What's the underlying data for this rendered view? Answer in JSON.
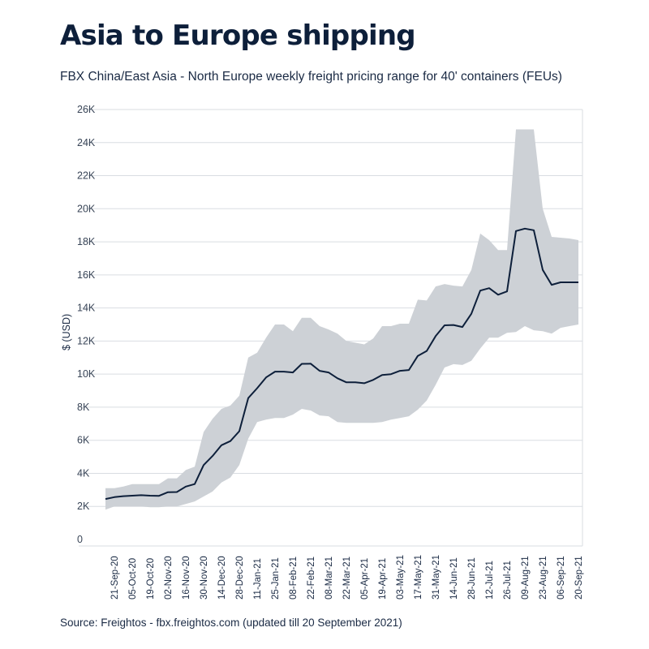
{
  "header": {
    "title": "Asia to Europe shipping",
    "subtitle": "FBX China/East Asia - North Europe weekly freight pricing range for 40' containers (FEUs)"
  },
  "footer": {
    "source": "Source: Freightos - fbx.freightos.com (updated till 20 September 2021)"
  },
  "colors": {
    "line": "#0d1f3a",
    "band": "#cdd1d6",
    "grid": "#d9dde2"
  },
  "chart_data": {
    "type": "area",
    "title": "Asia to Europe shipping",
    "subtitle": "FBX China/East Asia - North Europe weekly freight pricing range for 40' containers (FEUs)",
    "ylabel": "$ (USD)",
    "xlabel": "",
    "ylim": [
      0,
      26000
    ],
    "yticks": [
      0,
      2000,
      4000,
      6000,
      8000,
      10000,
      12000,
      14000,
      16000,
      18000,
      20000,
      22000,
      24000,
      26000
    ],
    "ytick_labels": [
      "0",
      "2K",
      "4K",
      "6K",
      "8K",
      "10K",
      "12K",
      "14K",
      "16K",
      "18K",
      "20K",
      "22K",
      "24K",
      "26K"
    ],
    "grid": true,
    "legend": "none",
    "x_tick_labels": [
      "21-Sep-20",
      "05-Oct-20",
      "19-Oct-20",
      "02-Nov-20",
      "16-Nov-20",
      "30-Nov-20",
      "14-Dec-20",
      "28-Dec-20",
      "11-Jan-21",
      "25-Jan-21",
      "08-Feb-21",
      "22-Feb-21",
      "08-Mar-21",
      "22-Mar-21",
      "05-Apr-21",
      "19-Apr-21",
      "03-May-21",
      "17-May-21",
      "31-May-21",
      "14-Jun-21",
      "28-Jun-21",
      "12-Jul-21",
      "26-Jul-21",
      "09-Aug-21",
      "23-Aug-21",
      "06-Sep-21",
      "20-Sep-21"
    ],
    "x": [
      "2020-09-14",
      "2020-09-21",
      "2020-09-28",
      "2020-10-05",
      "2020-10-12",
      "2020-10-19",
      "2020-10-26",
      "2020-11-02",
      "2020-11-09",
      "2020-11-16",
      "2020-11-23",
      "2020-11-30",
      "2020-12-07",
      "2020-12-14",
      "2020-12-21",
      "2020-12-28",
      "2021-01-04",
      "2021-01-11",
      "2021-01-18",
      "2021-01-25",
      "2021-02-01",
      "2021-02-08",
      "2021-02-15",
      "2021-02-22",
      "2021-03-01",
      "2021-03-08",
      "2021-03-15",
      "2021-03-22",
      "2021-03-29",
      "2021-04-05",
      "2021-04-12",
      "2021-04-19",
      "2021-04-26",
      "2021-05-03",
      "2021-05-10",
      "2021-05-17",
      "2021-05-24",
      "2021-05-31",
      "2021-06-07",
      "2021-06-14",
      "2021-06-21",
      "2021-06-28",
      "2021-07-05",
      "2021-07-12",
      "2021-07-19",
      "2021-07-26",
      "2021-08-02",
      "2021-08-09",
      "2021-08-16",
      "2021-08-23",
      "2021-08-30",
      "2021-09-06",
      "2021-09-13",
      "2021-09-20"
    ],
    "series": [
      {
        "role": "index",
        "values": [
          2450,
          2560,
          2620,
          2650,
          2680,
          2650,
          2640,
          2860,
          2870,
          3200,
          3350,
          4500,
          5050,
          5700,
          5950,
          6550,
          8550,
          9150,
          9800,
          10150,
          10150,
          10100,
          10620,
          10630,
          10200,
          10100,
          9750,
          9500,
          9500,
          9450,
          9650,
          9950,
          10000,
          10200,
          10250,
          11100,
          11400,
          12300,
          12950,
          12970,
          12850,
          13650,
          15050,
          15200,
          14800,
          15000,
          18650,
          18800,
          18700,
          16300,
          15400,
          15550,
          15550,
          15550
        ]
      },
      {
        "role": "range_high",
        "values": [
          3100,
          3100,
          3200,
          3350,
          3350,
          3350,
          3350,
          3700,
          3700,
          4200,
          4400,
          6500,
          7300,
          7900,
          8100,
          8700,
          11000,
          11300,
          12200,
          13000,
          13000,
          12600,
          13400,
          13400,
          12900,
          12700,
          12450,
          12000,
          11900,
          11800,
          12150,
          12900,
          12900,
          13050,
          13050,
          14500,
          14450,
          15300,
          15450,
          15350,
          15300,
          16300,
          18500,
          18100,
          17500,
          17500,
          24800,
          24800,
          24800,
          20000,
          18300,
          18250,
          18200,
          18100
        ]
      },
      {
        "role": "range_low",
        "values": [
          1800,
          2000,
          2000,
          2000,
          2000,
          1950,
          1950,
          2000,
          2000,
          2150,
          2300,
          2600,
          2900,
          3450,
          3750,
          4500,
          6100,
          7100,
          7250,
          7350,
          7350,
          7550,
          7900,
          7800,
          7500,
          7450,
          7100,
          7050,
          7050,
          7050,
          7050,
          7100,
          7250,
          7350,
          7450,
          7850,
          8400,
          9350,
          10400,
          10600,
          10550,
          10800,
          11550,
          12200,
          12200,
          12500,
          12550,
          12900,
          12650,
          12600,
          12450,
          12800,
          12900,
          13000
        ]
      }
    ]
  }
}
